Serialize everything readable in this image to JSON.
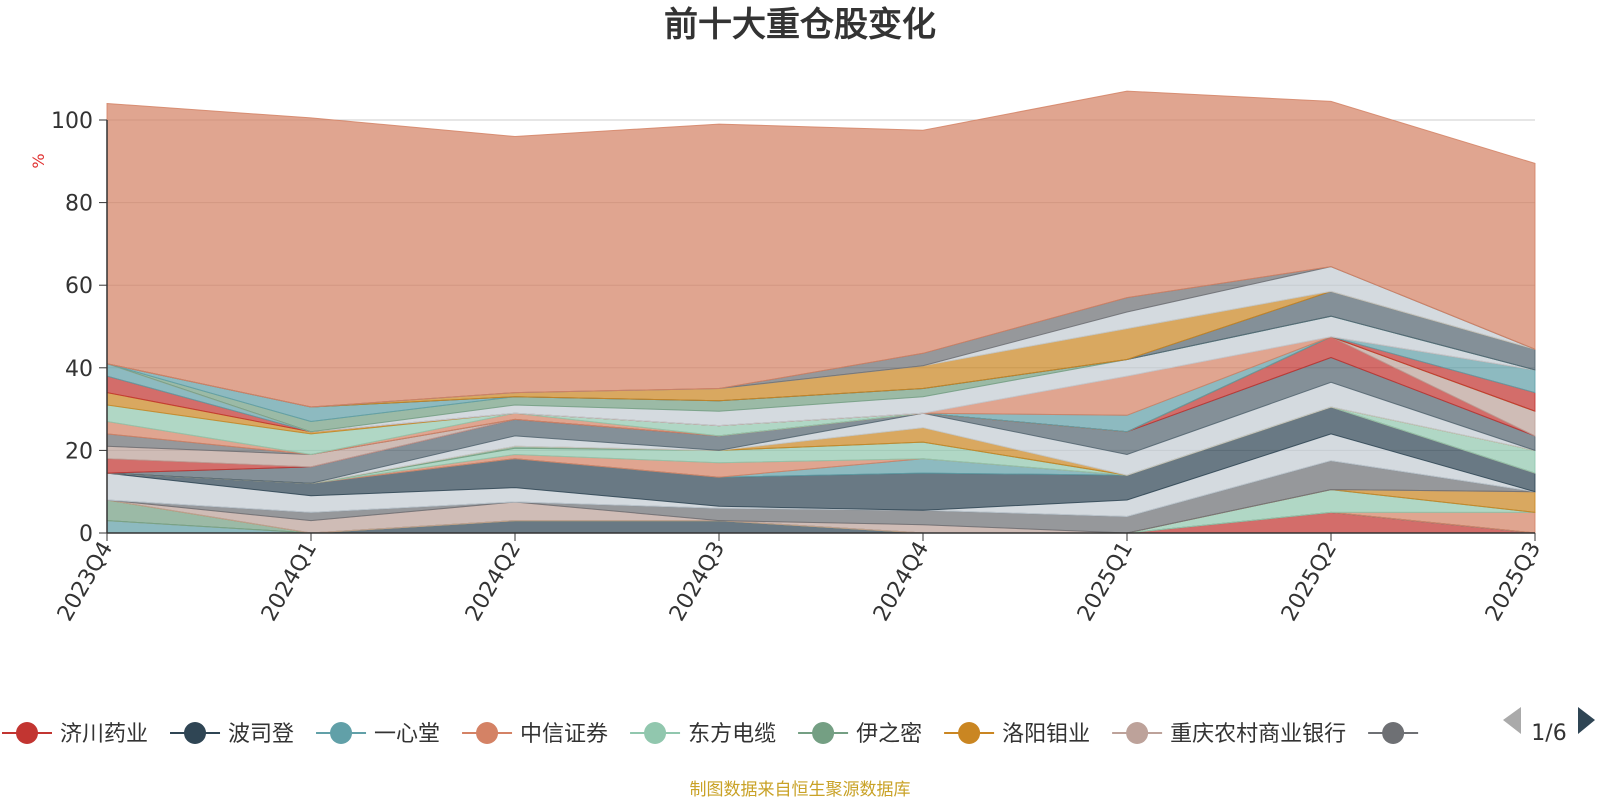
{
  "chart_data": {
    "type": "area",
    "stacked": true,
    "title": "前十大重仓股变化",
    "xlabel": "",
    "ylabel": "%",
    "ylim": [
      0,
      100
    ],
    "yticks": [
      "0",
      "20",
      "40",
      "60",
      "80",
      "100"
    ],
    "grid": true,
    "legend_position": "bottom",
    "categories": [
      "2023Q4",
      "2024Q1",
      "2024Q2",
      "2024Q3",
      "2024Q4",
      "2025Q1",
      "2025Q2",
      "2025Q3"
    ],
    "series": [
      {
        "name": "济川药业",
        "color": "#c23531",
        "values": [
          0,
          0,
          0,
          0,
          0,
          0,
          5,
          0
        ]
      },
      {
        "name": "波司登",
        "color": "#2f4554",
        "values": [
          0,
          0,
          3,
          3,
          0,
          0,
          0,
          0
        ]
      },
      {
        "name": "一心堂",
        "color": "#61a0a8",
        "values": [
          3,
          0,
          0,
          0,
          0,
          0,
          0,
          0
        ]
      },
      {
        "name": "中信证券",
        "color": "#d48265",
        "values": [
          0,
          0,
          0,
          0,
          0,
          0,
          0,
          5
        ]
      },
      {
        "name": "东方电缆",
        "color": "#91c7ae",
        "values": [
          0,
          0,
          0,
          0,
          0,
          0,
          5.5,
          0
        ]
      },
      {
        "name": "伊之密",
        "color": "#749f83",
        "values": [
          5,
          0,
          0,
          0,
          0,
          0,
          0,
          0
        ]
      },
      {
        "name": "洛阳钼业",
        "color": "#ca8622",
        "values": [
          0,
          0,
          0,
          0,
          0,
          0,
          0,
          5
        ]
      },
      {
        "name": "重庆农村商业银行",
        "color": "#bda29a",
        "values": [
          0,
          3,
          4.5,
          0,
          2,
          0,
          0,
          0
        ]
      },
      {
        "name": "",
        "color": "#6e7074",
        "values": [
          0,
          2,
          0,
          3,
          3.5,
          4,
          7,
          0
        ]
      },
      {
        "name": "",
        "color": "#546570",
        "values": [
          0,
          0,
          0,
          0,
          0,
          0,
          0,
          0
        ]
      },
      {
        "name": "",
        "color": "#c4ccd3",
        "values": [
          6.5,
          4,
          3.5,
          0.5,
          0,
          4,
          6.5,
          0
        ]
      },
      {
        "name": "",
        "color": "#2f4554",
        "values": [
          0,
          3,
          7,
          7,
          9,
          6,
          6.5,
          4.5
        ]
      },
      {
        "name": "",
        "color": "#61a0a8",
        "values": [
          0,
          0,
          0,
          0,
          3.5,
          0,
          0,
          0
        ]
      },
      {
        "name": "",
        "color": "#d48265",
        "values": [
          0,
          0,
          1,
          3.5,
          0,
          0,
          0,
          0
        ]
      },
      {
        "name": "",
        "color": "#91c7ae",
        "values": [
          0,
          0,
          1.5,
          3,
          4,
          0,
          0,
          5.5
        ]
      },
      {
        "name": "",
        "color": "#749f83",
        "values": [
          0,
          0,
          0.5,
          0,
          0,
          0,
          0,
          0
        ]
      },
      {
        "name": "",
        "color": "#ca8622",
        "values": [
          0,
          0,
          0,
          0,
          3.5,
          0,
          0,
          0
        ]
      },
      {
        "name": "",
        "color": "#c4ccd3",
        "values": [
          0,
          0,
          2.5,
          0,
          3.5,
          5,
          6,
          0
        ]
      },
      {
        "name": "",
        "color": "#546570",
        "values": [
          0,
          4,
          4,
          3.5,
          0,
          5.5,
          6,
          3.5
        ]
      },
      {
        "name": "",
        "color": "#c23531",
        "values": [
          3.5,
          0,
          0,
          0,
          0,
          0,
          5,
          0
        ]
      },
      {
        "name": "",
        "color": "#bda29a",
        "values": [
          3,
          3,
          0,
          0,
          0,
          0,
          0,
          6
        ]
      },
      {
        "name": "",
        "color": "#6e7074",
        "values": [
          3,
          0,
          0,
          0,
          0,
          0,
          0,
          0
        ]
      },
      {
        "name": "",
        "color": "#d48265",
        "values": [
          3,
          0,
          1.5,
          0,
          0,
          0,
          0,
          0
        ]
      },
      {
        "name": "",
        "color": "#91c7ae",
        "values": [
          4,
          5,
          0,
          2.5,
          0,
          0,
          0,
          0
        ]
      },
      {
        "name": "",
        "color": "#ca8622",
        "values": [
          3,
          0.5,
          0,
          0,
          0,
          0,
          0,
          0
        ]
      },
      {
        "name": "",
        "color": "#c23531",
        "values": [
          4,
          0,
          0,
          0,
          0,
          0,
          0,
          4.5
        ]
      },
      {
        "name": "",
        "color": "#61a0a8",
        "values": [
          3,
          0,
          0,
          0,
          0,
          4,
          0,
          5.5
        ]
      },
      {
        "name": "",
        "color": "#d48265",
        "values": [
          0,
          0,
          0,
          0,
          0,
          9.5,
          0,
          0
        ]
      },
      {
        "name": "",
        "color": "#c4ccd3",
        "values": [
          0,
          0,
          2,
          3.5,
          4,
          4,
          5,
          0
        ]
      },
      {
        "name": "",
        "color": "#749f83",
        "values": [
          0,
          2.5,
          2,
          2.5,
          2,
          0,
          0,
          0
        ]
      },
      {
        "name": "",
        "color": "#61a0a8",
        "values": [
          0,
          3.5,
          0,
          0,
          0,
          0,
          0,
          0
        ]
      },
      {
        "name": "",
        "color": "#546570",
        "values": [
          0,
          0,
          0,
          0,
          0,
          0,
          6,
          5
        ]
      },
      {
        "name": "",
        "color": "#ca8622",
        "values": [
          0,
          0,
          1,
          3,
          5.5,
          7.5,
          0,
          0
        ]
      },
      {
        "name": "",
        "color": "#c4ccd3",
        "values": [
          0,
          0,
          0,
          0,
          0,
          4,
          6,
          0
        ]
      },
      {
        "name": "",
        "color": "#6e7074",
        "values": [
          0,
          0,
          0,
          0,
          3,
          3.5,
          0,
          0
        ]
      },
      {
        "name": "",
        "color": "#d48265",
        "values": [
          63,
          70,
          62,
          64,
          54,
          50,
          40,
          45
        ]
      }
    ]
  },
  "legend": {
    "page_label": "1/6"
  },
  "footer": {
    "source_text": "制图数据来自恒生聚源数据库",
    "source_color": "#c9a227"
  },
  "colors": {
    "axis": "#333333",
    "grid": "#cccccc",
    "unit": "#e03030",
    "pager_active": "#2f4554",
    "pager_inactive": "#aaaaaa"
  }
}
